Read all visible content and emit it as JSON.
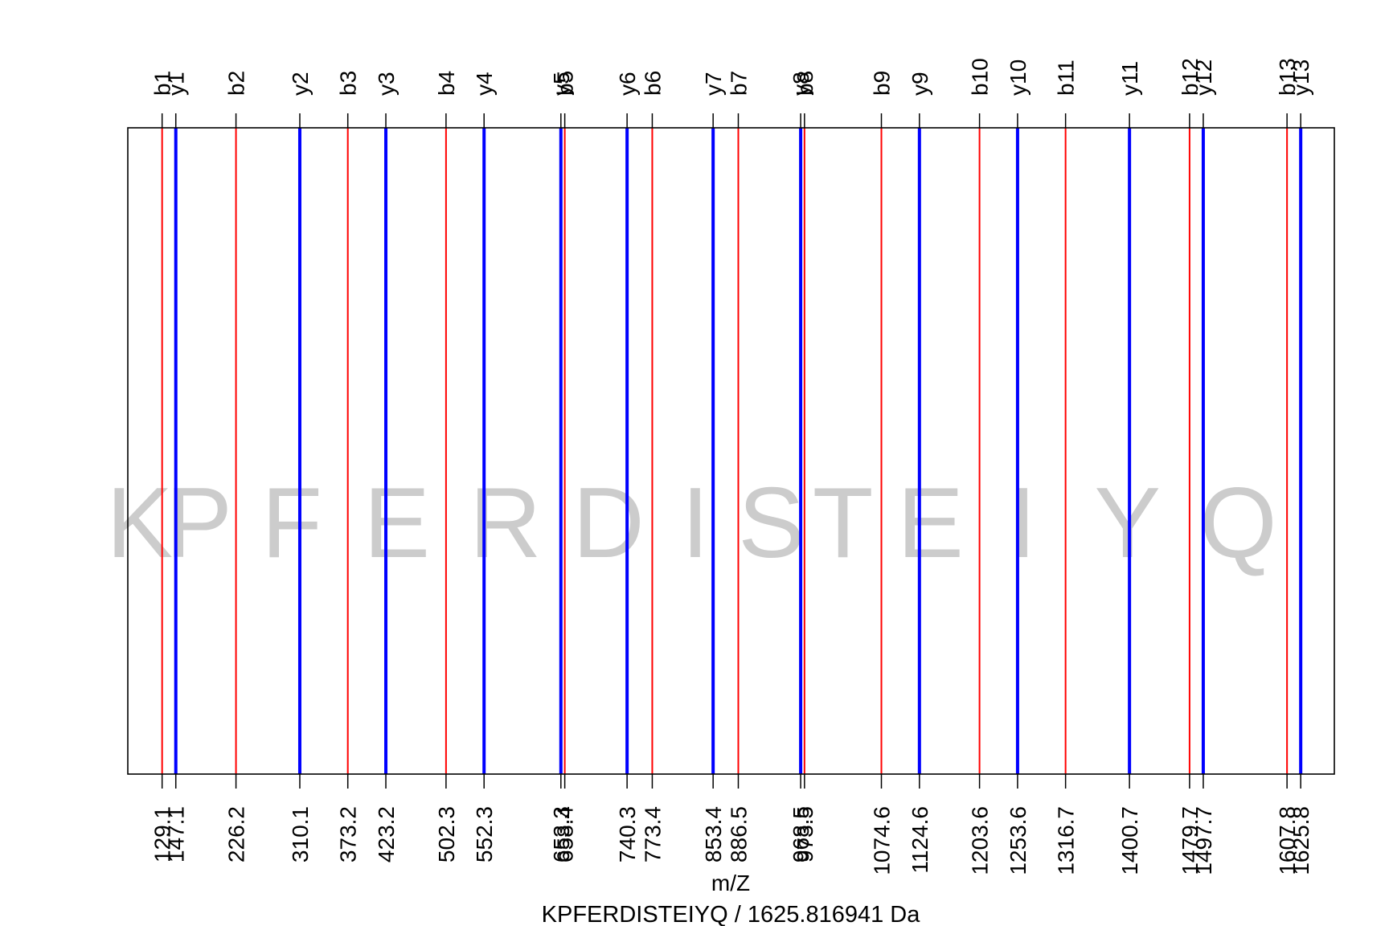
{
  "chart_data": {
    "type": "spectrum",
    "title": "KPFERDISTEIYQ / 1625.816941 Da",
    "xlabel": "m/Z",
    "ylabel": "",
    "xlim": [
      84,
      1670
    ],
    "grid": false,
    "colors": {
      "b": "#ff0000",
      "y": "#0000ff",
      "residue": "#cccccc",
      "axis": "#000000"
    },
    "residues": [
      "K",
      "P",
      "F",
      "E",
      "R",
      "D",
      "I",
      "S",
      "T",
      "E",
      "I",
      "Y",
      "Q"
    ],
    "series": [
      {
        "name": "b",
        "ions": [
          {
            "label": "b1",
            "mz": 129.1,
            "mz_label": "129.1"
          },
          {
            "label": "b2",
            "mz": 226.2,
            "mz_label": "226.2"
          },
          {
            "label": "b3",
            "mz": 373.2,
            "mz_label": "373.2"
          },
          {
            "label": "b4",
            "mz": 502.3,
            "mz_label": "502.3"
          },
          {
            "label": "b5",
            "mz": 658.4,
            "mz_label": "658.4"
          },
          {
            "label": "b6",
            "mz": 773.4,
            "mz_label": "773.4"
          },
          {
            "label": "b7",
            "mz": 886.5,
            "mz_label": "886.5"
          },
          {
            "label": "b8",
            "mz": 973.5,
            "mz_label": "973.5"
          },
          {
            "label": "b9",
            "mz": 1074.6,
            "mz_label": "1074.6"
          },
          {
            "label": "b10",
            "mz": 1203.6,
            "mz_label": "1203.6"
          },
          {
            "label": "b11",
            "mz": 1316.7,
            "mz_label": "1316.7"
          },
          {
            "label": "b12",
            "mz": 1479.7,
            "mz_label": "1479.7"
          },
          {
            "label": "b13",
            "mz": 1607.8,
            "mz_label": "1607.8"
          }
        ]
      },
      {
        "name": "y",
        "ions": [
          {
            "label": "y1",
            "mz": 147.1,
            "mz_label": "147.1"
          },
          {
            "label": "y2",
            "mz": 310.1,
            "mz_label": "310.1"
          },
          {
            "label": "y3",
            "mz": 423.2,
            "mz_label": "423.2"
          },
          {
            "label": "y4",
            "mz": 552.3,
            "mz_label": "552.3"
          },
          {
            "label": "y5",
            "mz": 653.3,
            "mz_label": "653.3"
          },
          {
            "label": "y6",
            "mz": 740.3,
            "mz_label": "740.3"
          },
          {
            "label": "y7",
            "mz": 853.4,
            "mz_label": "853.4"
          },
          {
            "label": "y8",
            "mz": 968.5,
            "mz_label": "968.5"
          },
          {
            "label": "y9",
            "mz": 1124.6,
            "mz_label": "1124.6"
          },
          {
            "label": "y10",
            "mz": 1253.6,
            "mz_label": "1253.6"
          },
          {
            "label": "y11",
            "mz": 1400.7,
            "mz_label": "1400.7"
          },
          {
            "label": "y12",
            "mz": 1497.7,
            "mz_label": "1497.7"
          },
          {
            "label": "y13",
            "mz": 1625.8,
            "mz_label": "1625.8"
          }
        ]
      }
    ]
  }
}
